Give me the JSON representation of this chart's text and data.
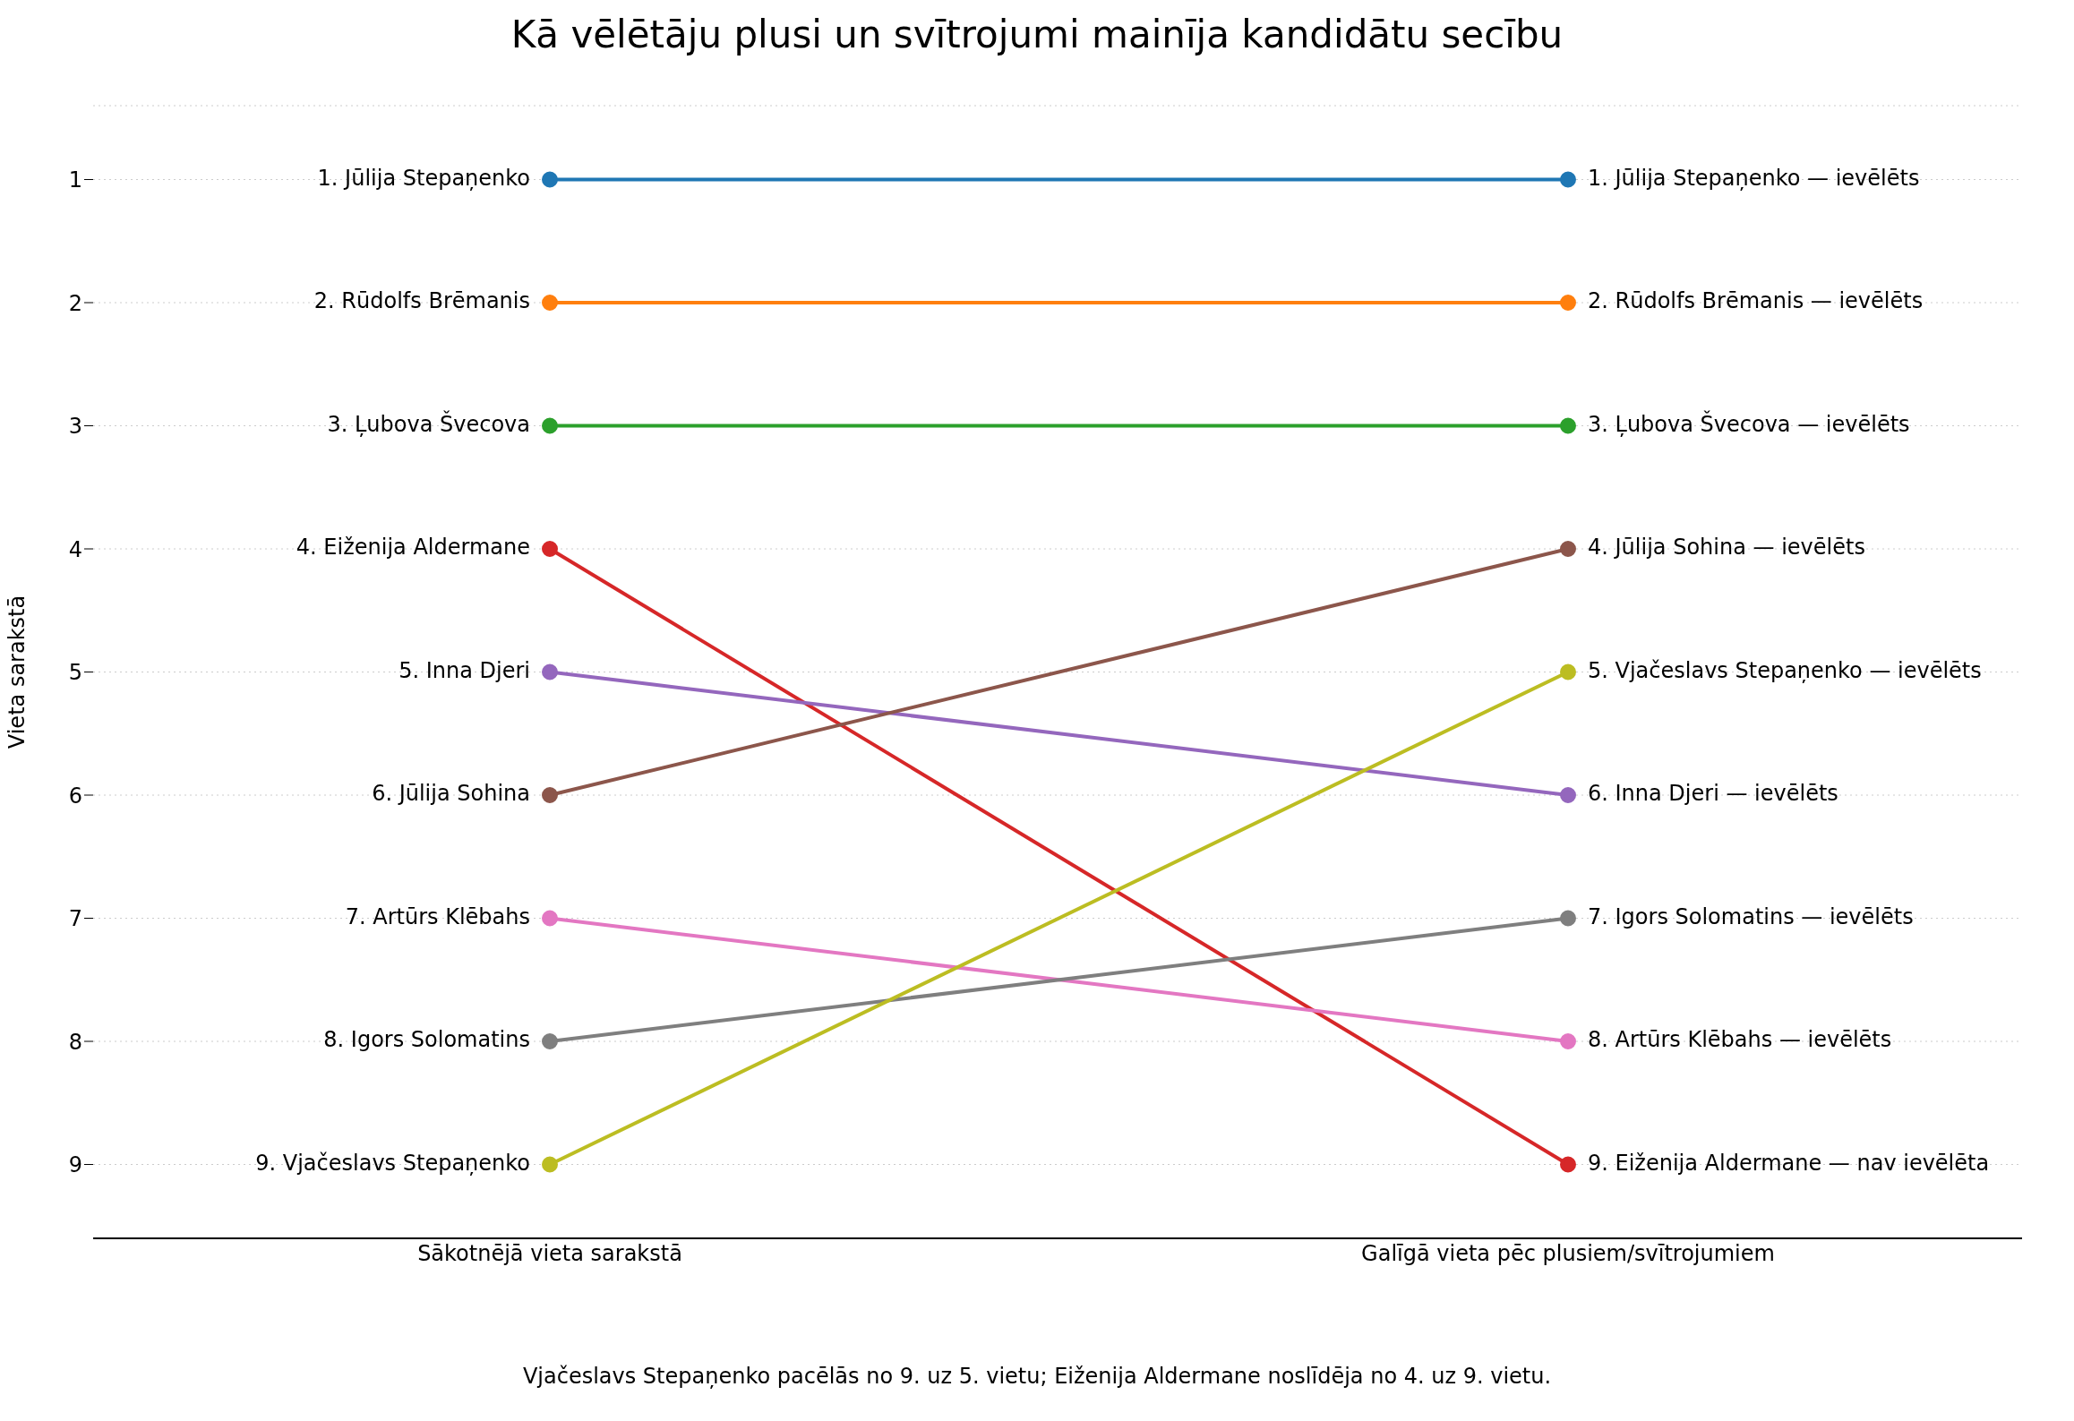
{
  "chart_data": {
    "type": "line",
    "title": "Kā vēlētāju plusi un svītrojumi mainīja kandidātu secību",
    "ylabel": "Vieta sarakstā",
    "categories": [
      "Sākotnējā vieta sarakstā",
      "Galīgā vieta pēc plusiem/svītrojumiem"
    ],
    "ylim": [
      9.6,
      0.4
    ],
    "yticks": [
      1,
      2,
      3,
      4,
      5,
      6,
      7,
      8,
      9
    ],
    "grid": "y",
    "marker": "circle",
    "line_style": "solid",
    "series": [
      {
        "color": "#1f77b4",
        "values": [
          1,
          1
        ],
        "value_labels": [
          "1.  Jūlija Stepaņenko",
          "1.  Jūlija Stepaņenko — ievēlēts"
        ]
      },
      {
        "color": "#ff7f0e",
        "values": [
          2,
          2
        ],
        "value_labels": [
          "2.  Rūdolfs Brēmanis",
          "2.  Rūdolfs Brēmanis — ievēlēts"
        ]
      },
      {
        "color": "#2ca02c",
        "values": [
          3,
          3
        ],
        "value_labels": [
          "3.  Ļubova Švecova",
          "3.  Ļubova Švecova — ievēlēts"
        ]
      },
      {
        "color": "#d62728",
        "values": [
          4,
          9
        ],
        "value_labels": [
          "4.  Eiženija Aldermane",
          "9.  Eiženija Aldermane — nav ievēlēta"
        ]
      },
      {
        "color": "#9467bd",
        "values": [
          5,
          6
        ],
        "value_labels": [
          "5.  Inna Djeri",
          "6.  Inna Djeri — ievēlēts"
        ]
      },
      {
        "color": "#8c564b",
        "values": [
          6,
          4
        ],
        "value_labels": [
          "6.  Jūlija Sohina",
          "4.  Jūlija Sohina — ievēlēts"
        ]
      },
      {
        "color": "#e377c2",
        "values": [
          7,
          8
        ],
        "value_labels": [
          "7.  Artūrs Klēbahs",
          "8.  Artūrs Klēbahs — ievēlēts"
        ]
      },
      {
        "color": "#7f7f7f",
        "values": [
          8,
          7
        ],
        "value_labels": [
          "8.  Igors Solomatins",
          "7.  Igors Solomatins — ievēlēts"
        ]
      },
      {
        "color": "#bcbd22",
        "values": [
          9,
          5
        ],
        "value_labels": [
          "9.  Vjačeslavs Stepaņenko",
          "5.  Vjačeslavs Stepaņenko — ievēlēts"
        ]
      }
    ],
    "annotations": [
      "Vjačeslavs Stepaņenko pacēlās no 9. uz 5. vietu; Eiženija Aldermane noslīdēja no 4. uz 9. vietu."
    ]
  }
}
